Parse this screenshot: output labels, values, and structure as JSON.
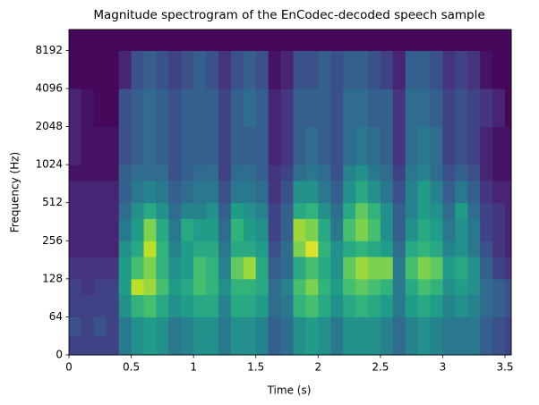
{
  "chart_data": {
    "type": "spectrogram",
    "title": "Magnitude spectrogram of the EnCodec-decoded speech sample",
    "xlabel": "Time (s)",
    "ylabel": "Frequency (Hz)",
    "colormap": "viridis",
    "vlim": [
      0,
      1
    ],
    "xlim": [
      0,
      3.55
    ],
    "xticks": [
      0,
      0.5,
      1,
      1.5,
      2,
      2.5,
      3,
      3.5
    ],
    "ylim": [
      0,
      12000
    ],
    "yscale": "symlog",
    "linthresh": 64,
    "base": 2,
    "yticks": [
      0,
      64,
      128,
      256,
      512,
      1024,
      2048,
      4096,
      8192
    ],
    "time_edges": [
      0,
      0.1,
      0.2,
      0.3,
      0.4,
      0.5,
      0.6,
      0.7,
      0.8,
      0.9,
      1,
      1.1,
      1.2,
      1.3,
      1.4,
      1.5,
      1.6,
      1.7,
      1.8,
      1.9,
      2,
      2.1,
      2.2,
      2.3,
      2.4,
      2.5,
      2.6,
      2.7,
      2.8,
      2.9,
      3,
      3.1,
      3.2,
      3.3,
      3.4,
      3.5,
      3.55
    ],
    "freq_edges": [
      0,
      32,
      64,
      96,
      128,
      192,
      256,
      384,
      512,
      768,
      1024,
      2048,
      4096,
      8192,
      12000
    ],
    "values": [
      [
        0.2,
        0.2,
        0.2,
        0.2,
        0.4,
        0.5,
        0.55,
        0.5,
        0.4,
        0.45,
        0.5,
        0.5,
        0.4,
        0.5,
        0.5,
        0.45,
        0.3,
        0.35,
        0.5,
        0.55,
        0.5,
        0.4,
        0.5,
        0.5,
        0.5,
        0.45,
        0.35,
        0.45,
        0.5,
        0.45,
        0.4,
        0.4,
        0.4,
        0.3,
        0.25,
        0.2
      ],
      [
        0.25,
        0.2,
        0.25,
        0.2,
        0.4,
        0.5,
        0.55,
        0.5,
        0.4,
        0.45,
        0.5,
        0.5,
        0.4,
        0.5,
        0.5,
        0.45,
        0.3,
        0.35,
        0.5,
        0.55,
        0.5,
        0.4,
        0.5,
        0.5,
        0.5,
        0.45,
        0.35,
        0.45,
        0.5,
        0.45,
        0.4,
        0.4,
        0.4,
        0.3,
        0.25,
        0.2
      ],
      [
        0.2,
        0.2,
        0.2,
        0.2,
        0.5,
        0.65,
        0.7,
        0.6,
        0.5,
        0.55,
        0.6,
        0.6,
        0.45,
        0.6,
        0.6,
        0.55,
        0.35,
        0.4,
        0.65,
        0.7,
        0.6,
        0.5,
        0.6,
        0.65,
        0.6,
        0.55,
        0.4,
        0.55,
        0.6,
        0.55,
        0.45,
        0.5,
        0.45,
        0.35,
        0.3,
        0.25
      ],
      [
        0.2,
        0.15,
        0.2,
        0.2,
        0.55,
        0.9,
        0.85,
        0.7,
        0.55,
        0.6,
        0.7,
        0.65,
        0.5,
        0.65,
        0.65,
        0.6,
        0.35,
        0.45,
        0.7,
        0.8,
        0.65,
        0.55,
        0.7,
        0.75,
        0.7,
        0.65,
        0.4,
        0.6,
        0.7,
        0.65,
        0.5,
        0.55,
        0.5,
        0.35,
        0.3,
        0.25
      ],
      [
        0.15,
        0.15,
        0.15,
        0.15,
        0.55,
        0.7,
        0.8,
        0.65,
        0.5,
        0.55,
        0.7,
        0.65,
        0.45,
        0.75,
        0.85,
        0.6,
        0.3,
        0.35,
        0.6,
        0.7,
        0.6,
        0.5,
        0.75,
        0.85,
        0.8,
        0.8,
        0.4,
        0.7,
        0.8,
        0.75,
        0.55,
        0.6,
        0.5,
        0.3,
        0.2,
        0.15
      ],
      [
        0.1,
        0.1,
        0.1,
        0.1,
        0.5,
        0.6,
        0.9,
        0.65,
        0.45,
        0.55,
        0.6,
        0.6,
        0.4,
        0.6,
        0.6,
        0.55,
        0.25,
        0.35,
        0.8,
        0.95,
        0.65,
        0.5,
        0.6,
        0.65,
        0.6,
        0.55,
        0.35,
        0.6,
        0.65,
        0.6,
        0.45,
        0.5,
        0.4,
        0.25,
        0.15,
        0.1
      ],
      [
        0.1,
        0.1,
        0.1,
        0.1,
        0.4,
        0.55,
        0.8,
        0.6,
        0.4,
        0.6,
        0.55,
        0.55,
        0.35,
        0.65,
        0.55,
        0.5,
        0.2,
        0.3,
        0.85,
        0.8,
        0.6,
        0.4,
        0.7,
        0.8,
        0.7,
        0.5,
        0.3,
        0.5,
        0.6,
        0.55,
        0.4,
        0.5,
        0.4,
        0.2,
        0.15,
        0.1
      ],
      [
        0.1,
        0.1,
        0.1,
        0.1,
        0.35,
        0.5,
        0.6,
        0.5,
        0.35,
        0.45,
        0.45,
        0.5,
        0.3,
        0.55,
        0.5,
        0.45,
        0.2,
        0.3,
        0.6,
        0.65,
        0.5,
        0.35,
        0.6,
        0.75,
        0.65,
        0.5,
        0.3,
        0.45,
        0.55,
        0.5,
        0.35,
        0.55,
        0.35,
        0.2,
        0.15,
        0.1
      ],
      [
        0.1,
        0.1,
        0.1,
        0.1,
        0.3,
        0.4,
        0.45,
        0.4,
        0.3,
        0.35,
        0.4,
        0.4,
        0.25,
        0.4,
        0.4,
        0.35,
        0.15,
        0.25,
        0.5,
        0.5,
        0.4,
        0.3,
        0.5,
        0.6,
        0.5,
        0.4,
        0.25,
        0.45,
        0.55,
        0.45,
        0.3,
        0.4,
        0.3,
        0.15,
        0.1,
        0.1
      ],
      [
        0.05,
        0.05,
        0.05,
        0.05,
        0.3,
        0.35,
        0.35,
        0.35,
        0.25,
        0.3,
        0.35,
        0.35,
        0.2,
        0.35,
        0.35,
        0.3,
        0.15,
        0.2,
        0.35,
        0.4,
        0.35,
        0.25,
        0.45,
        0.5,
        0.4,
        0.35,
        0.2,
        0.4,
        0.45,
        0.35,
        0.25,
        0.3,
        0.25,
        0.1,
        0.05,
        0.05
      ],
      [
        0.1,
        0.05,
        0.05,
        0.05,
        0.25,
        0.3,
        0.35,
        0.3,
        0.25,
        0.3,
        0.3,
        0.3,
        0.2,
        0.3,
        0.3,
        0.3,
        0.1,
        0.15,
        0.3,
        0.35,
        0.3,
        0.25,
        0.35,
        0.4,
        0.35,
        0.3,
        0.15,
        0.35,
        0.4,
        0.35,
        0.2,
        0.25,
        0.2,
        0.1,
        0.05,
        0.05
      ],
      [
        0.1,
        0.05,
        0.02,
        0.02,
        0.25,
        0.3,
        0.35,
        0.3,
        0.25,
        0.3,
        0.3,
        0.3,
        0.2,
        0.3,
        0.35,
        0.3,
        0.1,
        0.15,
        0.3,
        0.3,
        0.3,
        0.25,
        0.35,
        0.35,
        0.3,
        0.3,
        0.15,
        0.35,
        0.35,
        0.3,
        0.2,
        0.25,
        0.2,
        0.15,
        0.1,
        0.02
      ],
      [
        0.02,
        0.02,
        0.02,
        0.02,
        0.1,
        0.25,
        0.3,
        0.25,
        0.2,
        0.25,
        0.3,
        0.25,
        0.15,
        0.25,
        0.3,
        0.25,
        0.05,
        0.1,
        0.25,
        0.25,
        0.3,
        0.25,
        0.3,
        0.3,
        0.25,
        0.2,
        0.1,
        0.3,
        0.3,
        0.25,
        0.15,
        0.2,
        0.15,
        0.05,
        0.02,
        0.02
      ],
      [
        0.02,
        0.02,
        0.02,
        0.02,
        0.02,
        0.02,
        0.02,
        0.02,
        0.02,
        0.02,
        0.02,
        0.02,
        0.02,
        0.02,
        0.02,
        0.02,
        0.02,
        0.02,
        0.02,
        0.02,
        0.02,
        0.02,
        0.02,
        0.02,
        0.02,
        0.02,
        0.02,
        0.02,
        0.02,
        0.02,
        0.02,
        0.02,
        0.02,
        0.02,
        0.02,
        0.02
      ]
    ]
  }
}
